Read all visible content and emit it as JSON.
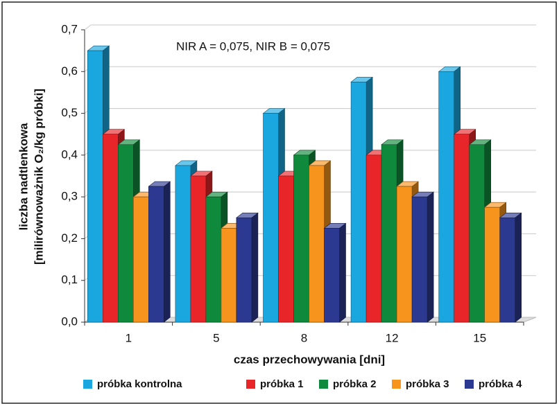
{
  "chart_data": {
    "type": "bar3d",
    "annotation": "NIR A = 0,075,   NIR B = 0,075",
    "x_label": "czas przechowywania [dni]",
    "y_label": [
      "liczba nadtlenkowa",
      "[milirównoważnik O₂/kg próbki]"
    ],
    "categories": [
      "1",
      "5",
      "8",
      "12",
      "15"
    ],
    "series": [
      {
        "name": "próbka kontrolna",
        "color": "#1aa7e0",
        "values": [
          0.65,
          0.375,
          0.5,
          0.575,
          0.6
        ]
      },
      {
        "name": "próbka 1",
        "color": "#e8262a",
        "values": [
          0.45,
          0.35,
          0.35,
          0.4,
          0.45
        ]
      },
      {
        "name": "próbka 2",
        "color": "#0f8a3c",
        "values": [
          0.425,
          0.3,
          0.4,
          0.425,
          0.425
        ]
      },
      {
        "name": "próbka 3",
        "color": "#f7941d",
        "values": [
          0.3,
          0.225,
          0.375,
          0.325,
          0.275
        ]
      },
      {
        "name": "próbka 4",
        "color": "#2b3990",
        "values": [
          0.325,
          0.25,
          0.225,
          0.3,
          0.25
        ]
      }
    ],
    "ylim": [
      0,
      0.7
    ],
    "yticks": [
      {
        "value": 0,
        "label": "0,0"
      },
      {
        "value": 0.1,
        "label": "0,1"
      },
      {
        "value": 0.2,
        "label": "0,2"
      },
      {
        "value": 0.3,
        "label": "0,3"
      },
      {
        "value": 0.4,
        "label": "0,4"
      },
      {
        "value": 0.5,
        "label": "0,5"
      },
      {
        "value": 0.6,
        "label": "0,6"
      },
      {
        "value": 0.7,
        "label": "0,7"
      }
    ],
    "grid": true
  }
}
